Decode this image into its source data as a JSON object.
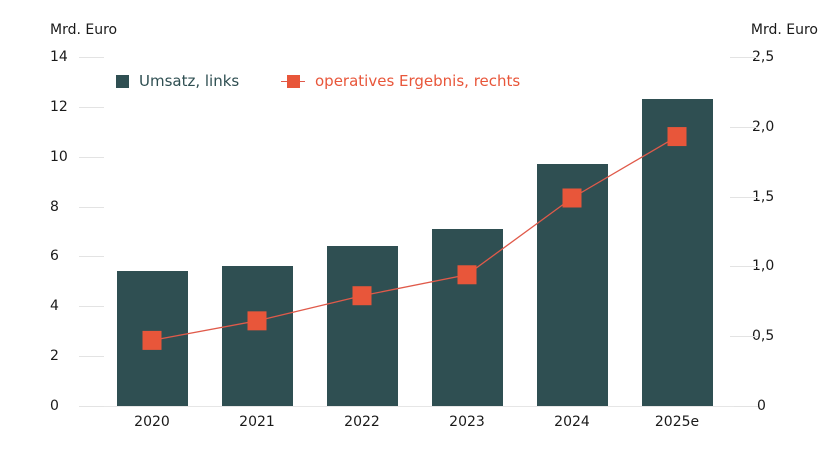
{
  "chart_data": {
    "type": "bar+line",
    "title": "",
    "categories": [
      "2020",
      "2021",
      "2022",
      "2023",
      "2024",
      "2025e"
    ],
    "series": [
      {
        "name": "Umsatz, links",
        "type": "bar",
        "axis": "left",
        "color": "#2f4f52",
        "values": [
          5.4,
          5.6,
          6.4,
          7.1,
          9.7,
          12.3
        ]
      },
      {
        "name": "operatives Ergebnis, rechts",
        "type": "line",
        "axis": "right",
        "color": "#e8563a",
        "marker": "square",
        "values": [
          0.47,
          0.61,
          0.79,
          0.94,
          1.49,
          1.93
        ]
      }
    ],
    "left_axis": {
      "label": "Mrd. Euro",
      "ylim": [
        0,
        14
      ],
      "ticks": [
        "0",
        "2",
        "4",
        "6",
        "8",
        "10",
        "12",
        "14"
      ]
    },
    "right_axis": {
      "label": "Mrd. Euro",
      "ylim": [
        0,
        2.5
      ],
      "ticks": [
        "0",
        "0,5",
        "1,0",
        "1,5",
        "2,0",
        "2,5"
      ]
    },
    "xlabel": "",
    "grid": "short tick-lines at axis edges",
    "legend_position": "top-left"
  },
  "labels": {
    "left_unit": "Mrd. Euro",
    "right_unit": "Mrd. Euro",
    "legend_bar": "Umsatz, links",
    "legend_line": "operatives Ergebnis, rechts"
  }
}
